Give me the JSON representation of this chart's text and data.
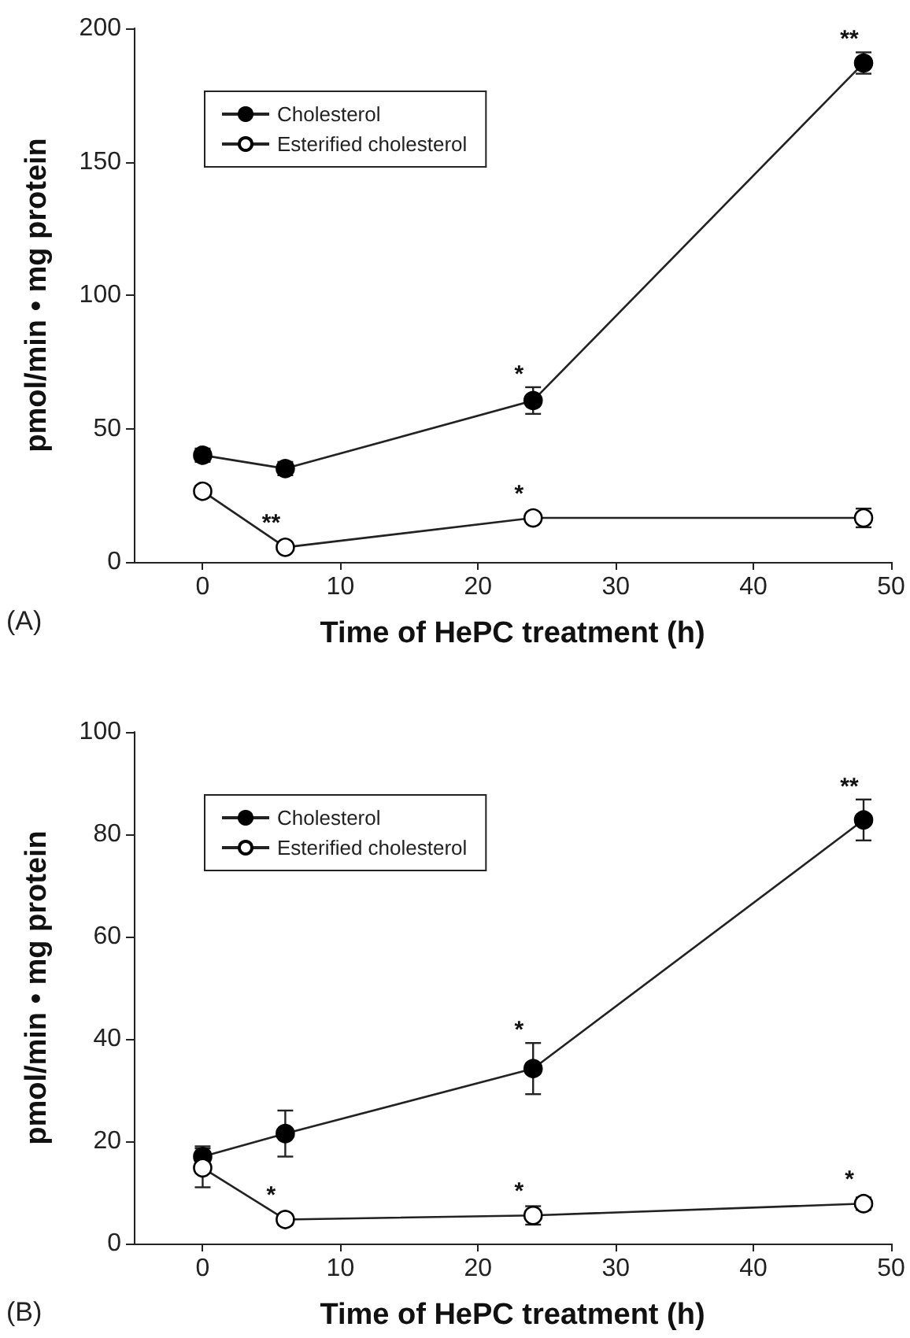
{
  "chart_data": [
    {
      "type": "line",
      "xlabel": "Time of HePC treatment (h)",
      "ylabel": "pmol/min • mg protein",
      "xlim": [
        -5,
        50
      ],
      "xticks": [
        0,
        10,
        20,
        30,
        40,
        50
      ],
      "ylim": [
        0,
        200
      ],
      "yticks": [
        0,
        50,
        100,
        150,
        200
      ],
      "grid": false,
      "legend": "top left",
      "marker": "circle",
      "line_style": "solid",
      "series": [
        {
          "name": "Cholesterol",
          "color": "#000000",
          "x": [
            0,
            6,
            24,
            48
          ],
          "values": [
            40,
            35,
            60.5,
            187
          ],
          "errors": [
            2.5,
            2.5,
            5,
            4
          ]
        },
        {
          "name": "Esterified cholesterol",
          "color": "#ffffff",
          "x": [
            0,
            6,
            24,
            48
          ],
          "values": [
            26.5,
            5.5,
            16.5,
            16.5
          ],
          "errors": [
            2,
            null,
            1.5,
            3.5
          ]
        }
      ],
      "annotations": [
        "(A)",
        {
          "text": "**",
          "x": 6,
          "y": 5.5
        },
        {
          "text": "*",
          "x": 24,
          "y": 16.5
        },
        {
          "text": "*",
          "x": 24,
          "y": 60.5
        },
        {
          "text": "**",
          "x": 48,
          "y": 187
        }
      ]
    },
    {
      "type": "line",
      "xlabel": "Time of HePC treatment (h)",
      "ylabel": "pmol/min • mg protein",
      "xlim": [
        -5,
        50
      ],
      "xticks": [
        0,
        10,
        20,
        30,
        40,
        50
      ],
      "ylim": [
        0,
        100
      ],
      "yticks": [
        0,
        20,
        40,
        60,
        80,
        100
      ],
      "grid": false,
      "legend": "top left",
      "marker": "circle",
      "line_style": "solid",
      "series": [
        {
          "name": "Cholesterol",
          "color": "#000000",
          "x": [
            0,
            6,
            24,
            48
          ],
          "values": [
            17,
            21.5,
            34.2,
            82.8
          ],
          "errors": [
            2,
            4.5,
            5,
            4
          ]
        },
        {
          "name": "Esterified cholesterol",
          "color": "#ffffff",
          "x": [
            0,
            6,
            24,
            48
          ],
          "values": [
            14.8,
            4.7,
            5.5,
            7.8
          ],
          "errors": [
            3.8,
            1,
            1.8,
            1.2
          ]
        }
      ],
      "annotations": [
        "(B)",
        {
          "text": "*",
          "x": 24,
          "y": 34.2
        },
        {
          "text": "**",
          "x": 48,
          "y": 82.8
        },
        {
          "text": "*",
          "x": 6,
          "y": 4.7
        },
        {
          "text": "*",
          "x": 24,
          "y": 5.5
        },
        {
          "text": "*",
          "x": 48,
          "y": 7.8
        }
      ]
    }
  ]
}
